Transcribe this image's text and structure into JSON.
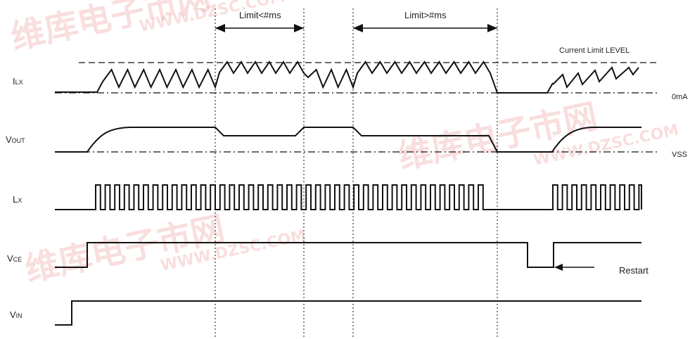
{
  "signals": [
    {
      "id": "ilx",
      "prefix": "I",
      "sub": "LX"
    },
    {
      "id": "vout",
      "prefix": "V",
      "sub": "OUT"
    },
    {
      "id": "lx",
      "prefix": "L",
      "sub": "X"
    },
    {
      "id": "vce",
      "prefix": "V",
      "sub": "CE"
    },
    {
      "id": "vin",
      "prefix": "V",
      "sub": "IN"
    }
  ],
  "annotations": {
    "limit_short": "Limit<#ms",
    "limit_long": "Limit>#ms",
    "current_limit": "Current Limit LEVEL",
    "zero_ma": "0mA",
    "vss": "VSS",
    "restart": "Restart"
  },
  "watermark": {
    "brand": "维库电子市网",
    "url": "WWW.DZSC.COM"
  }
}
